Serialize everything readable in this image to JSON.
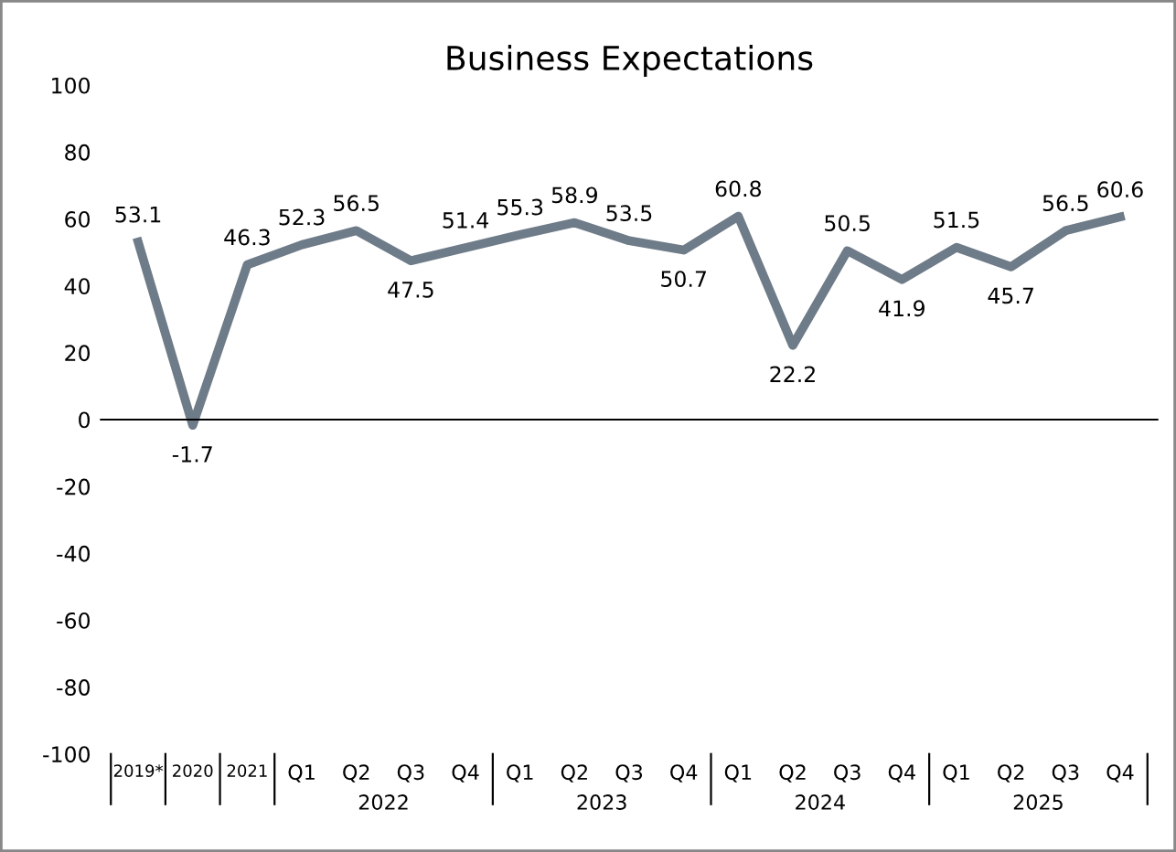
{
  "chart_data": {
    "type": "line",
    "title": "Business Expectations",
    "categories": [
      "2019*",
      "2020",
      "2021",
      "Q1",
      "Q2",
      "Q3",
      "Q4",
      "Q1",
      "Q2",
      "Q3",
      "Q4",
      "Q1",
      "Q2",
      "Q3",
      "Q4",
      "Q1",
      "Q2",
      "Q3",
      "Q4"
    ],
    "series": [
      {
        "color": "#6e7b88",
        "values": [
          53.1,
          -1.7,
          46.3,
          52.3,
          56.5,
          47.5,
          51.4,
          55.3,
          58.9,
          53.5,
          50.7,
          60.8,
          22.2,
          50.5,
          41.9,
          51.5,
          45.7,
          56.5,
          60.6
        ]
      }
    ],
    "annotations": [
      "2022",
      "2023",
      "2024",
      "2025"
    ],
    "ylim": [
      -100,
      100
    ],
    "yticks": [
      -100,
      -80,
      -60,
      -40,
      -20,
      0,
      20,
      40,
      60,
      80,
      100
    ],
    "ref_lines": [
      {
        "axis": "y",
        "value": 0,
        "color": "#000000"
      }
    ],
    "data_labels": true,
    "grid": false,
    "legend": false,
    "marker": "none",
    "line_style": "solid"
  }
}
